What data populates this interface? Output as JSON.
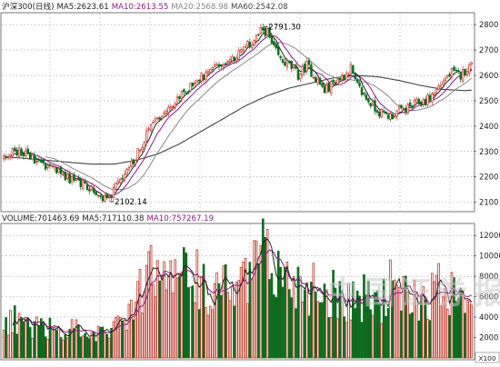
{
  "chart_data": [
    {
      "type": "candlestick",
      "title": "沪深300(日线)",
      "indicators": [
        {
          "label": "MA5:2623.61",
          "color": "#222222"
        },
        {
          "label": "MA10:2613.55",
          "color": "#8a1a8a"
        },
        {
          "label": "MA20:2568.98",
          "color": "#888888"
        },
        {
          "label": "MA60:2542.08",
          "color": "#444444"
        }
      ],
      "ylim": [
        2070,
        2840
      ],
      "y_ticks": [
        2100,
        2200,
        2300,
        2400,
        2500,
        2600,
        2700,
        2800
      ],
      "y_tick_labels": [
        "2100",
        "2200",
        "2300",
        "2400",
        "2500",
        "2600",
        "2700",
        "2800"
      ],
      "annotations": [
        {
          "text": "2791.30",
          "value": 2791.3,
          "type": "high"
        },
        {
          "text": "2102.14",
          "value": 2102.14,
          "type": "low"
        }
      ],
      "colors": {
        "up": "#c0392b",
        "down": "#0f6b1f",
        "ma5": "#222222",
        "ma10": "#8a1a8a",
        "ma20": "#888888",
        "ma60": "#444444"
      },
      "close_path": [
        [
          0,
          2270
        ],
        [
          5,
          2305
        ],
        [
          10,
          2290
        ],
        [
          18,
          2250
        ],
        [
          25,
          2215
        ],
        [
          32,
          2185
        ],
        [
          40,
          2150
        ],
        [
          45,
          2120
        ],
        [
          48,
          2110
        ],
        [
          51,
          2160
        ],
        [
          56,
          2230
        ],
        [
          60,
          2280
        ],
        [
          66,
          2380
        ],
        [
          72,
          2450
        ],
        [
          78,
          2500
        ],
        [
          85,
          2560
        ],
        [
          92,
          2610
        ],
        [
          100,
          2650
        ],
        [
          108,
          2690
        ],
        [
          114,
          2740
        ],
        [
          118,
          2780
        ],
        [
          120,
          2770
        ],
        [
          122,
          2720
        ],
        [
          126,
          2660
        ],
        [
          130,
          2640
        ],
        [
          134,
          2600
        ],
        [
          138,
          2640
        ],
        [
          142,
          2590
        ],
        [
          146,
          2540
        ],
        [
          150,
          2570
        ],
        [
          155,
          2600
        ],
        [
          158,
          2630
        ],
        [
          160,
          2570
        ],
        [
          164,
          2520
        ],
        [
          168,
          2480
        ],
        [
          172,
          2450
        ],
        [
          176,
          2440
        ],
        [
          180,
          2460
        ],
        [
          184,
          2470
        ],
        [
          188,
          2490
        ],
        [
          192,
          2500
        ],
        [
          196,
          2530
        ],
        [
          200,
          2580
        ],
        [
          204,
          2610
        ],
        [
          208,
          2600
        ],
        [
          211,
          2630
        ],
        [
          213,
          2640
        ]
      ],
      "ma60_path": [
        [
          0,
          2280
        ],
        [
          20,
          2265
        ],
        [
          40,
          2250
        ],
        [
          50,
          2250
        ],
        [
          60,
          2265
        ],
        [
          70,
          2290
        ],
        [
          80,
          2330
        ],
        [
          90,
          2380
        ],
        [
          100,
          2430
        ],
        [
          110,
          2480
        ],
        [
          120,
          2520
        ],
        [
          130,
          2550
        ],
        [
          140,
          2570
        ],
        [
          150,
          2590
        ],
        [
          160,
          2600
        ],
        [
          170,
          2595
        ],
        [
          180,
          2580
        ],
        [
          190,
          2560
        ],
        [
          200,
          2545
        ],
        [
          210,
          2540
        ],
        [
          213,
          2542
        ]
      ]
    },
    {
      "type": "bar",
      "title": "VOLUME:701463.69",
      "indicators": [
        {
          "label": "MA5:717110.38",
          "color": "#222222"
        },
        {
          "label": "MA10:757267.19",
          "color": "#8a1a8a"
        }
      ],
      "ylim": [
        0,
        13000
      ],
      "y_ticks": [
        2000,
        4000,
        6000,
        8000,
        10000,
        12000
      ],
      "y_tick_labels": [
        "2000",
        "4000",
        "6000",
        "8000",
        "10000",
        "12000"
      ],
      "unit_label": "X100",
      "volume_path": [
        [
          0,
          3600
        ],
        [
          6,
          3800
        ],
        [
          12,
          3400
        ],
        [
          20,
          3100
        ],
        [
          30,
          2900
        ],
        [
          40,
          2600
        ],
        [
          48,
          2500
        ],
        [
          54,
          3200
        ],
        [
          58,
          4400
        ],
        [
          62,
          6500
        ],
        [
          66,
          8200
        ],
        [
          72,
          7600
        ],
        [
          78,
          7900
        ],
        [
          84,
          8400
        ],
        [
          90,
          7300
        ],
        [
          96,
          7600
        ],
        [
          102,
          6900
        ],
        [
          108,
          6800
        ],
        [
          114,
          8800
        ],
        [
          118,
          10200
        ],
        [
          120,
          9200
        ],
        [
          124,
          8900
        ],
        [
          128,
          7800
        ],
        [
          132,
          7900
        ],
        [
          136,
          7400
        ],
        [
          142,
          7300
        ],
        [
          148,
          6600
        ],
        [
          152,
          6500
        ],
        [
          158,
          6100
        ],
        [
          164,
          5900
        ],
        [
          170,
          5800
        ],
        [
          176,
          5800
        ],
        [
          182,
          5900
        ],
        [
          188,
          6200
        ],
        [
          194,
          6400
        ],
        [
          200,
          7200
        ],
        [
          206,
          7900
        ],
        [
          210,
          7200
        ],
        [
          213,
          7000
        ]
      ]
    }
  ],
  "watermark": "中国证券报"
}
